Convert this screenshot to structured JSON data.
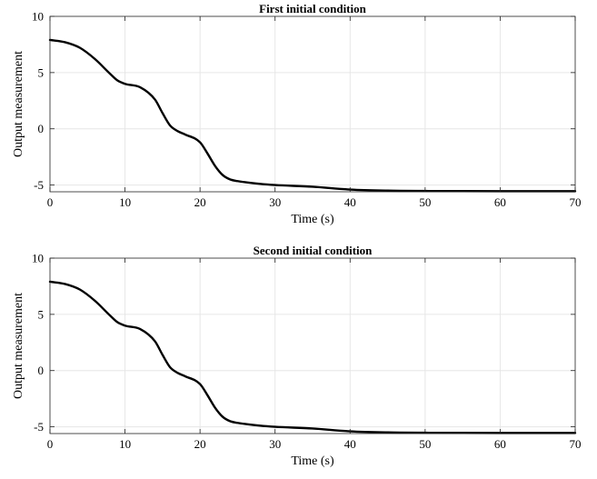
{
  "chart_data": [
    {
      "type": "line",
      "title": "First initial condition",
      "xlabel": "Time (s)",
      "ylabel": "Output measurement",
      "xlim": [
        0,
        70
      ],
      "ylim": [
        -5.6,
        10
      ],
      "xticks": [
        0,
        10,
        20,
        30,
        40,
        50,
        60,
        70
      ],
      "yticks": [
        -5,
        0,
        5,
        10
      ],
      "grid": true,
      "series": [
        {
          "color": "#000000",
          "x": [
            0,
            2,
            4,
            6,
            8,
            9,
            10,
            12,
            14,
            15,
            16,
            17,
            18,
            20,
            21,
            22,
            23,
            24,
            25,
            26,
            28,
            30,
            35,
            40,
            45,
            50,
            60,
            70
          ],
          "y": [
            7.9,
            7.7,
            7.2,
            6.2,
            4.9,
            4.3,
            4.0,
            3.7,
            2.6,
            1.4,
            0.3,
            -0.2,
            -0.5,
            -1.2,
            -2.2,
            -3.3,
            -4.1,
            -4.5,
            -4.65,
            -4.75,
            -4.9,
            -5.0,
            -5.15,
            -5.4,
            -5.5,
            -5.53,
            -5.55,
            -5.55
          ]
        }
      ]
    },
    {
      "type": "line",
      "title": "Second initial condition",
      "xlabel": "Time (s)",
      "ylabel": "Output measurement",
      "xlim": [
        0,
        70
      ],
      "ylim": [
        -5.6,
        10
      ],
      "xticks": [
        0,
        10,
        20,
        30,
        40,
        50,
        60,
        70
      ],
      "yticks": [
        -5,
        0,
        5,
        10
      ],
      "grid": true,
      "series": [
        {
          "color": "#000000",
          "x": [
            0,
            2,
            4,
            6,
            8,
            9,
            10,
            12,
            14,
            15,
            16,
            17,
            18,
            20,
            21,
            22,
            23,
            24,
            25,
            26,
            28,
            30,
            35,
            40,
            45,
            50,
            60,
            70
          ],
          "y": [
            7.9,
            7.7,
            7.2,
            6.2,
            4.9,
            4.3,
            4.0,
            3.7,
            2.6,
            1.4,
            0.3,
            -0.2,
            -0.5,
            -1.2,
            -2.2,
            -3.3,
            -4.1,
            -4.5,
            -4.65,
            -4.75,
            -4.9,
            -5.0,
            -5.15,
            -5.4,
            -5.5,
            -5.53,
            -5.55,
            -5.55
          ]
        }
      ]
    }
  ]
}
